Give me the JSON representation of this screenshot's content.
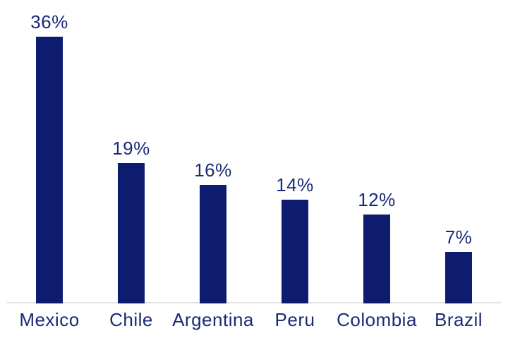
{
  "chart_data": {
    "type": "bar",
    "title": "",
    "xlabel": "",
    "ylabel": "",
    "categories": [
      "Mexico",
      "Chile",
      "Argentina",
      "Peru",
      "Colombia",
      "Brazil"
    ],
    "values": [
      36,
      19,
      16,
      14,
      12,
      7
    ],
    "value_labels": [
      "36%",
      "19%",
      "16%",
      "14%",
      "12%",
      "7%"
    ],
    "unit": "%",
    "ylim": [
      0,
      41
    ],
    "grid": "off",
    "legend": "none",
    "axis_ticks": "none",
    "bar_color": "#0d1c6e",
    "text_color": "#1a2a78",
    "axis_line_color": "#e2e2e6",
    "background_color": "#ffffff"
  }
}
